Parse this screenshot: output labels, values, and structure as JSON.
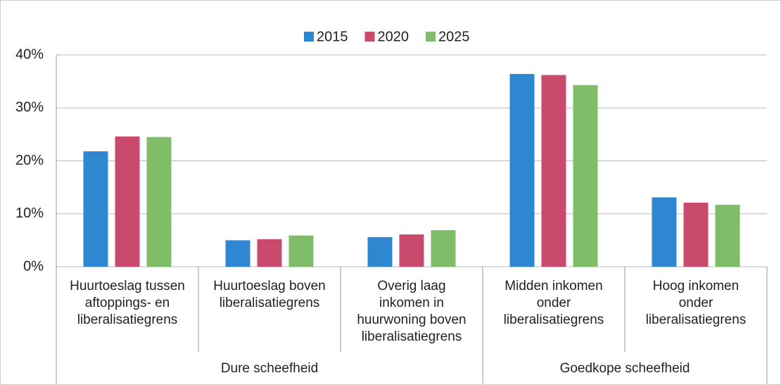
{
  "chart_data": {
    "type": "bar",
    "categories": [
      "Huurtoeslag tussen\naftoppings- en\nliberalisatiegrens",
      "Huurtoeslag boven\nliberalisatiegrens",
      "Overig laag\ninkomen in\nhuurwoning boven\nliberalisatiegrens",
      "Midden inkomen\nonder\nliberalisatiegrens",
      "Hoog inkomen\nonder\nliberalisatiegrens"
    ],
    "groups": [
      {
        "name": "Dure scheefheid",
        "count": 3
      },
      {
        "name": "Goedkope scheefheid",
        "count": 2
      }
    ],
    "series": [
      {
        "name": "2015",
        "color": "#2f87d1",
        "values": [
          21.8,
          5.0,
          5.6,
          36.4,
          13.1
        ]
      },
      {
        "name": "2020",
        "color": "#c94a6c",
        "values": [
          24.6,
          5.2,
          6.1,
          36.2,
          12.1
        ]
      },
      {
        "name": "2025",
        "color": "#7fbd69",
        "values": [
          24.5,
          5.9,
          6.9,
          34.3,
          11.7
        ]
      }
    ],
    "ylim": [
      0,
      40
    ],
    "yticks": [
      {
        "value": 0,
        "label": "0%"
      },
      {
        "value": 10,
        "label": "10%"
      },
      {
        "value": 20,
        "label": "20%"
      },
      {
        "value": 30,
        "label": "30%"
      },
      {
        "value": 40,
        "label": "40%"
      }
    ],
    "grid": true,
    "legend": "top"
  }
}
